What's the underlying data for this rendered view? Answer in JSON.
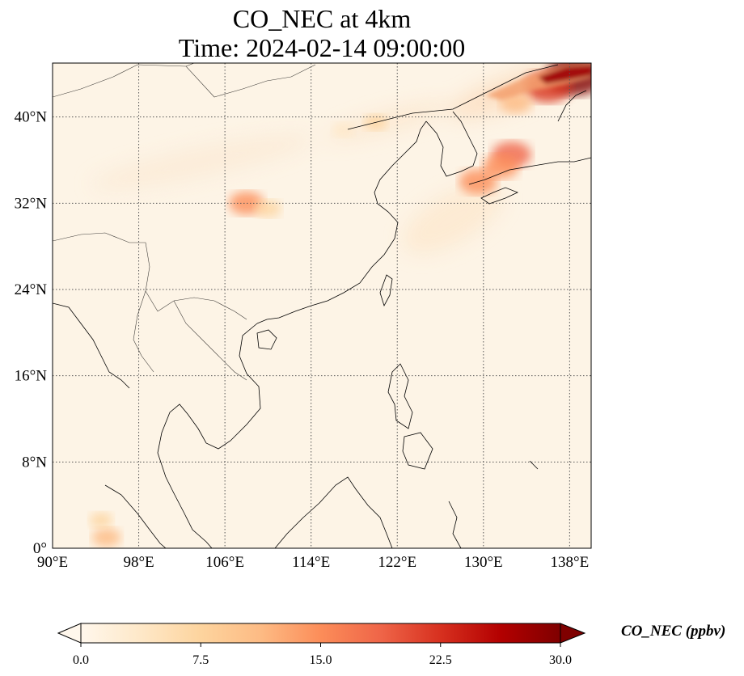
{
  "title": {
    "line1": "CO_NEC at 4km",
    "line2": "Time: 2024-02-14 09:00:00"
  },
  "map": {
    "projection": "PlateCarree",
    "extent_lon": [
      90,
      140
    ],
    "extent_lat": [
      0,
      45
    ],
    "gridlines": "dotted",
    "lon_ticks": [
      {
        "value": 90,
        "label": "90°E"
      },
      {
        "value": 98,
        "label": "98°E"
      },
      {
        "value": 106,
        "label": "106°E"
      },
      {
        "value": 114,
        "label": "114°E"
      },
      {
        "value": 122,
        "label": "122°E"
      },
      {
        "value": 130,
        "label": "130°E"
      },
      {
        "value": 138,
        "label": "138°E"
      }
    ],
    "lat_ticks": [
      {
        "value": 0,
        "label": "0°"
      },
      {
        "value": 8,
        "label": "8°N"
      },
      {
        "value": 16,
        "label": "16°N"
      },
      {
        "value": 24,
        "label": "24°N"
      },
      {
        "value": 32,
        "label": "32°N"
      },
      {
        "value": 40,
        "label": "40°N"
      }
    ],
    "hotspots": [
      {
        "lon": 138.5,
        "lat": 43.8,
        "value": 30
      },
      {
        "lon": 136.0,
        "lat": 42.8,
        "value": 22
      },
      {
        "lon": 133.0,
        "lat": 41.3,
        "value": 12
      },
      {
        "lon": 132.6,
        "lat": 36.5,
        "value": 17
      },
      {
        "lon": 131.6,
        "lat": 35.4,
        "value": 15
      },
      {
        "lon": 129.5,
        "lat": 34.0,
        "value": 16
      },
      {
        "lon": 108.0,
        "lat": 32.0,
        "value": 14
      },
      {
        "lon": 110.0,
        "lat": 31.5,
        "value": 8
      },
      {
        "lon": 95.0,
        "lat": 1.0,
        "value": 10
      },
      {
        "lon": 94.5,
        "lat": 2.6,
        "value": 6
      },
      {
        "lon": 120.0,
        "lat": 39.5,
        "value": 6
      },
      {
        "lon": 117.0,
        "lat": 38.8,
        "value": 5
      }
    ],
    "colormap": "OrRd"
  },
  "colorbar": {
    "label": "CO_NEC (ppbv)",
    "min": 0,
    "max": 30,
    "extend": "both",
    "ticks": [
      "0.0",
      "7.5",
      "15.0",
      "22.5",
      "30.0"
    ],
    "colors": [
      "#fff7ec",
      "#fee8c8",
      "#fdd49e",
      "#fdbb84",
      "#fc8d59",
      "#ef6548",
      "#d7301f",
      "#b30000",
      "#7f0000"
    ]
  }
}
